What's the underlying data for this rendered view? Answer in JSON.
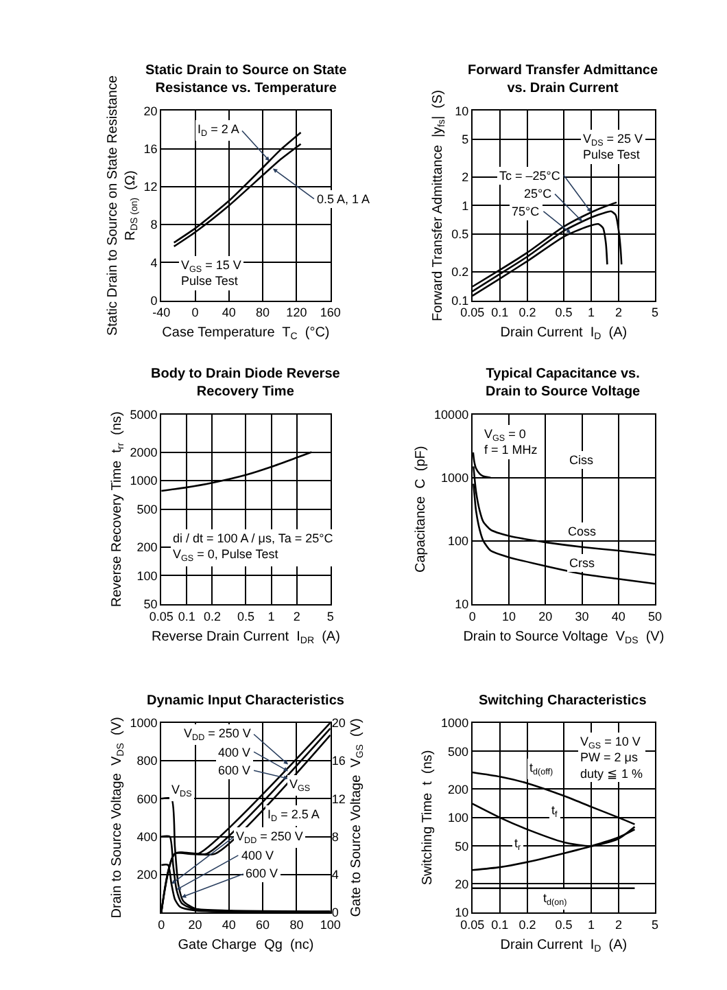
{
  "chart_data": [
    {
      "type": "line",
      "title": "Static Drain to Source on State\nResistance vs. Temperature",
      "xlabel": "Case Temperature  T$_{C}$  (°C)",
      "ylabel": "Static Drain to Source on State Resistance\nR$_{DS (on)}$  (Ω)",
      "xlim": [
        -40,
        160
      ],
      "xticks": [
        -40,
        0,
        40,
        80,
        120,
        160
      ],
      "ylim": [
        0,
        20
      ],
      "yticks": [
        0,
        4,
        8,
        12,
        16,
        20
      ],
      "grid": true,
      "series": [
        {
          "color": "#000000",
          "x": [
            -25,
            0,
            40,
            80,
            100,
            125
          ],
          "values": [
            6.1,
            7.6,
            10.5,
            14.0,
            15.8,
            17.7
          ]
        },
        {
          "color": "#000000",
          "x": [
            -25,
            0,
            40,
            80,
            100,
            125
          ],
          "values": [
            5.7,
            7.2,
            10.0,
            13.2,
            14.8,
            16.5
          ]
        }
      ],
      "annotations": [
        {
          "text": "I$_{D}$ = 2 A",
          "x": 88,
          "y": 14.7
        },
        {
          "text": "0.5 A, 1 A",
          "x": 92,
          "y": 13.9
        },
        "V$_{GS}$ = 15 V\nPulse Test"
      ]
    },
    {
      "type": "line",
      "title": "Forward Transfer Admittance\nvs. Drain Current",
      "xlabel": "Drain Current  I$_{D}$  (A)",
      "ylabel": "Forward Transfer Admittance  |y$_{fs}$|  (S)",
      "log": "xy",
      "xlim": [
        0.05,
        5
      ],
      "xticks": [
        0.05,
        0.1,
        0.2,
        0.5,
        1,
        2,
        5
      ],
      "ylim": [
        0.1,
        10
      ],
      "yticks": [
        0.1,
        0.2,
        0.5,
        1,
        2,
        5,
        10
      ],
      "grid": true,
      "series": [
        {
          "color": "#000000",
          "x": [
            0.05,
            0.1,
            0.2,
            0.5,
            1,
            1.5,
            1.9
          ],
          "values": [
            0.14,
            0.21,
            0.32,
            0.6,
            0.85,
            1.0,
            1.08
          ]
        },
        {
          "color": "#000000",
          "x": [
            0.05,
            0.1,
            0.2,
            0.5,
            1,
            1.4,
            1.65,
            1.85,
            2,
            2.1,
            2.15
          ],
          "values": [
            0.125,
            0.19,
            0.29,
            0.54,
            0.75,
            0.84,
            0.87,
            0.8,
            0.55,
            0.35,
            0.24
          ]
        },
        {
          "color": "#000000",
          "x": [
            0.05,
            0.1,
            0.2,
            0.5,
            0.9,
            1.2,
            1.35,
            1.45,
            1.5
          ],
          "values": [
            0.112,
            0.17,
            0.26,
            0.47,
            0.6,
            0.64,
            0.58,
            0.4,
            0.24
          ]
        }
      ],
      "annotations": [
        {
          "text": "Tc = –25°C",
          "x": 1,
          "y": 0.85
        },
        {
          "text": "25°C",
          "x": 0.8,
          "y": 0.68
        },
        {
          "text": "75°C",
          "x": 0.6,
          "y": 0.51
        },
        "V$_{DS}$ = 25 V\nPulse Test"
      ]
    },
    {
      "type": "line",
      "title": "Body to Drain Diode Reverse\nRecovery Time",
      "xlabel": "Reverse Drain Current  I$_{DR}$  (A)",
      "ylabel": "Reverse Recovery Time  t$_{rr}$  (ns)",
      "log": "xy",
      "xlim": [
        0.05,
        5
      ],
      "xticks": [
        0.05,
        0.1,
        0.2,
        0.5,
        1,
        2,
        5
      ],
      "ylim": [
        50,
        5000
      ],
      "yticks": [
        50,
        100,
        200,
        500,
        1000,
        2000,
        5000
      ],
      "grid": true,
      "series": [
        {
          "color": "#000000",
          "x": [
            0.05,
            0.1,
            0.2,
            0.5,
            1,
            2,
            3
          ],
          "values": [
            780,
            850,
            950,
            1150,
            1400,
            1750,
            2000
          ]
        }
      ],
      "annotations": [
        "di / dt = 100 A / μs, Ta = 25°C\nV$_{GS}$ = 0, Pulse Test"
      ]
    },
    {
      "type": "line",
      "title": "Typical Capacitance vs.\nDrain to Source Voltage",
      "xlabel": "Drain to Source Voltage  V$_{DS}$  (V)",
      "ylabel": "Capacitance  C  (pF)",
      "log": "y",
      "xlim": [
        0,
        50
      ],
      "xticks": [
        0,
        10,
        20,
        30,
        40,
        50
      ],
      "ylim": [
        10,
        10000
      ],
      "yticks": [
        10,
        100,
        1000,
        10000
      ],
      "grid": true,
      "series": [
        {
          "color": "#000000",
          "x": [
            0.2,
            0.5,
            1,
            2,
            3,
            5
          ],
          "values": [
            2500,
            1800,
            1400,
            1150,
            1050,
            1000
          ]
        },
        {
          "color": "#000000",
          "x": [
            0.3,
            1,
            2,
            3,
            5,
            10,
            20,
            30,
            40,
            50
          ],
          "values": [
            1500,
            600,
            300,
            200,
            150,
            120,
            95,
            80,
            70,
            60
          ]
        },
        {
          "color": "#000000",
          "x": [
            0.3,
            1,
            2,
            3,
            5,
            10,
            20,
            30,
            40,
            50
          ],
          "values": [
            800,
            300,
            150,
            100,
            70,
            55,
            40,
            30,
            25,
            21
          ]
        }
      ],
      "annotations": [
        "Ciss",
        "Coss",
        "Crss",
        "V$_{GS}$ = 0\nf = 1 MHz"
      ]
    },
    {
      "type": "line",
      "title": "Dynamic Input Characteristics",
      "xlabel": "Gate Charge  Qg  (nc)",
      "ylabel": "Drain to Source Voltage  V$_{DS}$  (V)",
      "y2label": "Gate to Source Voltage  V$_{GS}$  (V)",
      "xlim": [
        0,
        100
      ],
      "xticks": [
        0,
        20,
        40,
        60,
        80,
        100
      ],
      "ylim": [
        0,
        1000
      ],
      "yticks": [
        200,
        400,
        600,
        800,
        1000
      ],
      "y2lim": [
        0,
        20
      ],
      "y2ticks": [
        0,
        4,
        8,
        12,
        16,
        20
      ],
      "grid": true,
      "series": [
        {
          "color": "#000000",
          "x": [
            0,
            4,
            6,
            8,
            11,
            20,
            100
          ],
          "values": [
            250,
            250,
            150,
            70,
            30,
            10,
            5
          ]
        },
        {
          "color": "#000000",
          "x": [
            0,
            5,
            7,
            9,
            12,
            20,
            100
          ],
          "values": [
            400,
            400,
            250,
            120,
            50,
            15,
            5
          ]
        },
        {
          "color": "#000000",
          "x": [
            0,
            6,
            8,
            10,
            13,
            20,
            40,
            100
          ],
          "values": [
            600,
            600,
            350,
            150,
            60,
            20,
            10,
            5
          ]
        },
        {
          "color": "#000000",
          "axis": "y2",
          "x": [
            0,
            8,
            22,
            100
          ],
          "values": [
            0,
            6.2,
            6.2,
            20
          ]
        },
        {
          "color": "#000000",
          "axis": "y2",
          "x": [
            0,
            8,
            27,
            100
          ],
          "values": [
            0,
            6.2,
            6.2,
            19.4
          ]
        },
        {
          "color": "#000000",
          "axis": "y2",
          "x": [
            0,
            8,
            32,
            100
          ],
          "values": [
            0,
            6.2,
            6.2,
            18.7
          ]
        }
      ],
      "annotations": [
        {
          "text": "V$_{DD}$ = 250 V",
          "x": 75,
          "y": 780
        },
        {
          "text": "400 V",
          "x": 75,
          "y": 745
        },
        {
          "text": "600 V",
          "x": 75,
          "y": 705
        },
        {
          "text": "V$_{DD}$ = 250 V",
          "x": 6,
          "y": 150
        },
        {
          "text": "400 V",
          "x": 9,
          "y": 120
        },
        {
          "text": "600 V",
          "x": 12,
          "y": 80
        },
        "V$_{DS}$",
        "V$_{GS}$",
        "I$_{D}$ = 2.5 A"
      ]
    },
    {
      "type": "line",
      "title": "Switching Characteristics",
      "xlabel": "Drain Current  I$_{D}$  (A)",
      "ylabel": "Switching Time  t  (ns)",
      "log": "xy",
      "xlim": [
        0.05,
        5
      ],
      "xticks": [
        0.05,
        0.1,
        0.2,
        0.5,
        1,
        2,
        5
      ],
      "ylim": [
        10,
        1000
      ],
      "yticks": [
        10,
        20,
        50,
        100,
        200,
        500,
        1000
      ],
      "grid": true,
      "series": [
        {
          "color": "#000000",
          "x": [
            0.05,
            0.1,
            0.2,
            0.5,
            1,
            2,
            3
          ],
          "values": [
            300,
            270,
            230,
            170,
            130,
            100,
            85
          ]
        },
        {
          "color": "#000000",
          "x": [
            0.05,
            0.1,
            0.2,
            0.5,
            1,
            2,
            3
          ],
          "values": [
            140,
            100,
            75,
            55,
            50,
            60,
            80
          ]
        },
        {
          "color": "#000000",
          "x": [
            0.05,
            0.1,
            0.2,
            0.5,
            1,
            2,
            3
          ],
          "values": [
            28,
            30,
            34,
            42,
            50,
            62,
            75
          ]
        },
        {
          "color": "#000000",
          "x": [
            0.05,
            3
          ],
          "values": [
            18,
            18
          ]
        }
      ],
      "annotations": [
        "t$_{d(off)}$",
        "t$_{f}$",
        "t$_{r}$",
        "t$_{d(on)}$",
        "V$_{GS}$ = 10 V\nPW = 2 μs\nduty ≦ 1 %"
      ]
    }
  ]
}
